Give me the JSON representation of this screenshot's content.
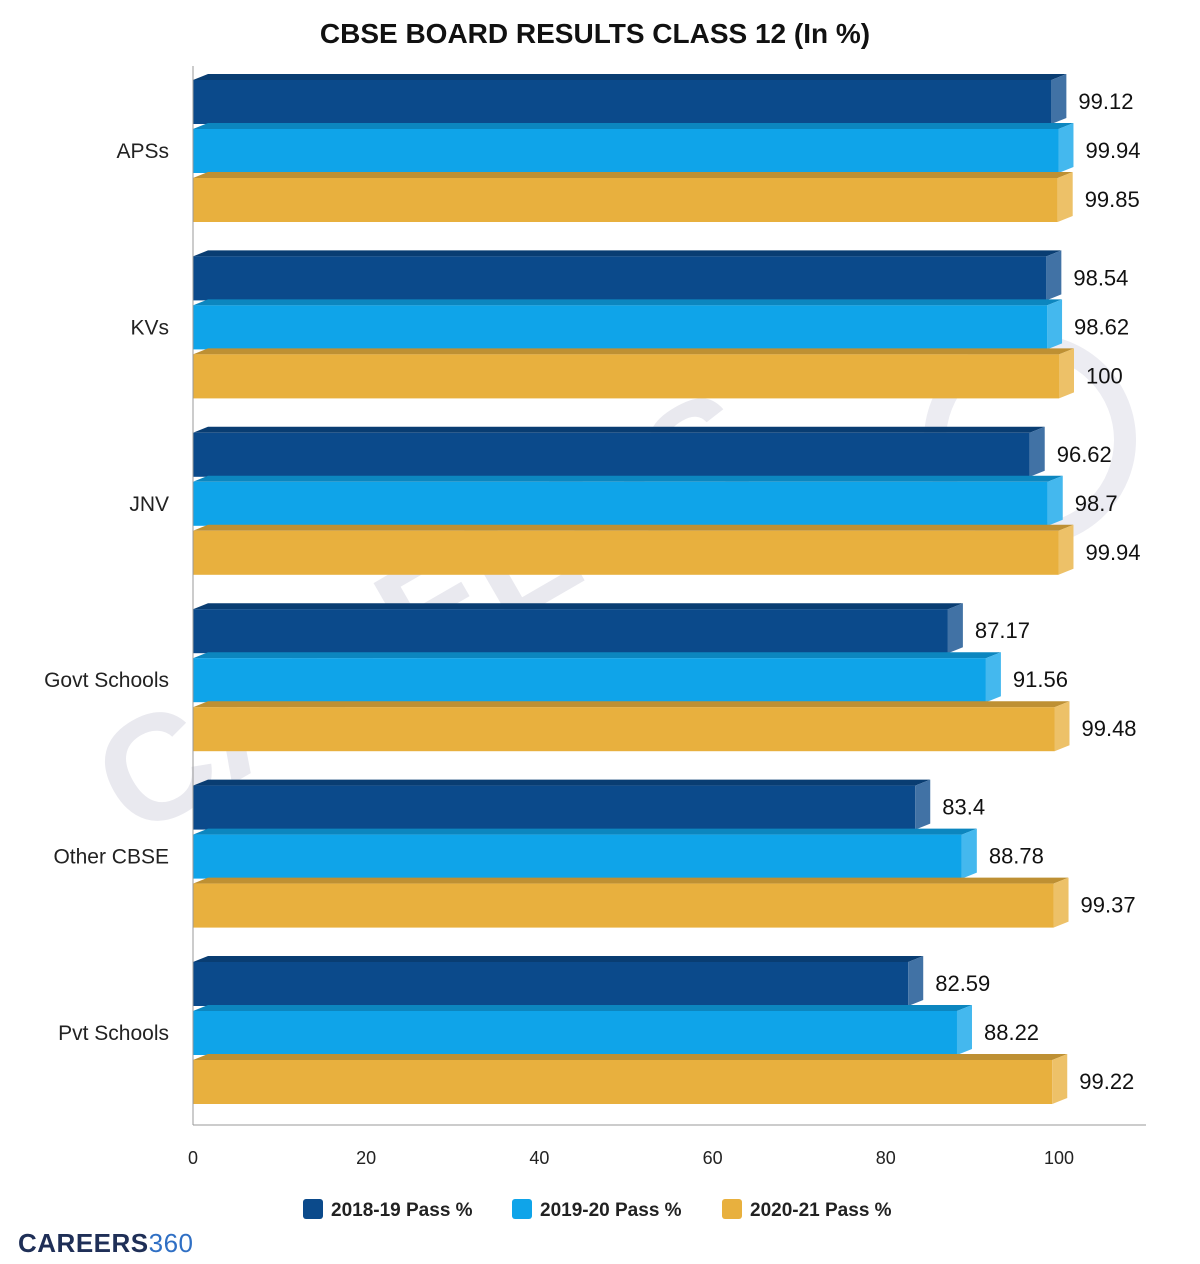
{
  "chart_data": {
    "type": "bar",
    "orientation": "horizontal",
    "title": "CBSE BOARD RESULTS CLASS 12 (In %)",
    "categories": [
      "APSs",
      "KVs",
      "JNV",
      "Govt Schools",
      "Other CBSE",
      "Pvt Schools"
    ],
    "series": [
      {
        "name": "2018-19 Pass %",
        "color": "#0b4a8b",
        "values": [
          99.12,
          98.54,
          96.62,
          87.17,
          83.4,
          82.59
        ]
      },
      {
        "name": "2019-20 Pass %",
        "color": "#0fa4e9",
        "values": [
          99.94,
          98.62,
          98.7,
          91.56,
          88.78,
          88.22
        ]
      },
      {
        "name": "2020-21 Pass %",
        "color": "#e8b03e",
        "values": [
          99.85,
          100,
          99.94,
          99.48,
          99.37,
          99.22
        ]
      }
    ],
    "xlim": [
      0,
      110
    ],
    "xticks": [
      0,
      20,
      40,
      60,
      80,
      100
    ],
    "xlabel": "",
    "ylabel": "",
    "legend_position": "bottom",
    "grid": false
  },
  "watermark": "CAREERS",
  "logo": {
    "word": "CAREERS",
    "number": "360"
  }
}
